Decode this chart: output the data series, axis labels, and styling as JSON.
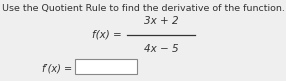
{
  "title": "Use the Quotient Rule to find the derivative of the function.",
  "fx_label": "f(x) =",
  "numerator": "3x + 2",
  "denominator": "4x − 5",
  "fpx_label": "f′(x) =",
  "bg_color": "#efefef",
  "text_color": "#333333",
  "title_fontsize": 6.8,
  "math_fontsize": 7.5,
  "label_fontsize": 7.0
}
